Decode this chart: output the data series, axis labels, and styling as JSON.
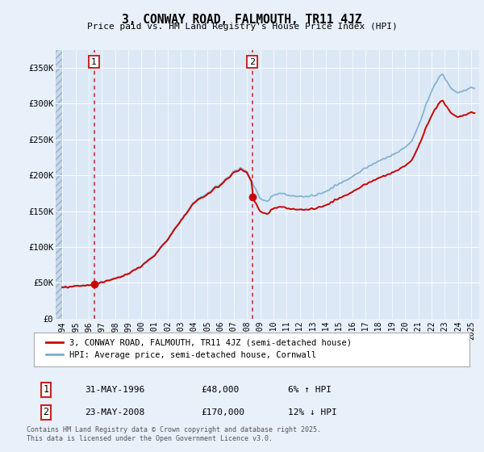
{
  "title": "3, CONWAY ROAD, FALMOUTH, TR11 4JZ",
  "subtitle": "Price paid vs. HM Land Registry's House Price Index (HPI)",
  "background_color": "#e8f0fa",
  "plot_bg_color": "#dce8f5",
  "legend_label_red": "3, CONWAY ROAD, FALMOUTH, TR11 4JZ (semi-detached house)",
  "legend_label_blue": "HPI: Average price, semi-detached house, Cornwall",
  "annotation1_date": "31-MAY-1996",
  "annotation1_price": "£48,000",
  "annotation1_hpi": "6% ↑ HPI",
  "annotation2_date": "23-MAY-2008",
  "annotation2_price": "£170,000",
  "annotation2_hpi": "12% ↓ HPI",
  "footer": "Contains HM Land Registry data © Crown copyright and database right 2025.\nThis data is licensed under the Open Government Licence v3.0.",
  "red_color": "#cc0000",
  "blue_color": "#7aadcf",
  "vline_color": "#cc2222",
  "sale1_year": 1996.42,
  "sale1_price": 48000,
  "sale2_year": 2008.39,
  "sale2_price": 170000,
  "ylim": [
    0,
    375000
  ],
  "xlim_start": 1993.5,
  "xlim_end": 2025.6,
  "yticks": [
    0,
    50000,
    100000,
    150000,
    200000,
    250000,
    300000,
    350000
  ],
  "ytick_labels": [
    "£0",
    "£50K",
    "£100K",
    "£150K",
    "£200K",
    "£250K",
    "£300K",
    "£350K"
  ],
  "xticks": [
    1994,
    1995,
    1996,
    1997,
    1998,
    1999,
    2000,
    2001,
    2002,
    2003,
    2004,
    2005,
    2006,
    2007,
    2008,
    2009,
    2010,
    2011,
    2012,
    2013,
    2014,
    2015,
    2016,
    2017,
    2018,
    2019,
    2020,
    2021,
    2022,
    2023,
    2024,
    2025
  ]
}
